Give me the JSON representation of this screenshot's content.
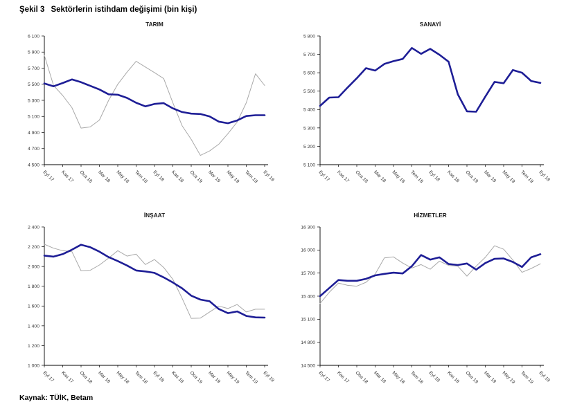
{
  "figure_title": {
    "label": "Şekil 3",
    "text": "Sektörlerin istihdam değişimi (bin kişi)"
  },
  "source": "Kaynak: TÜİK, Betam",
  "colors": {
    "navy": "#1e1e96",
    "gray": "#a9a9a9",
    "axis": "#000000",
    "tick_label": "#333333",
    "title": "#1a1a1a"
  },
  "x_tick_labels": [
    "Eyl 17",
    "Kas 17",
    "Oca 18",
    "Mar 18",
    "May 18",
    "Tem 18",
    "Eyl 18",
    "Kas 18",
    "Oca 19",
    "Mar 19",
    "May 19",
    "Tem 19",
    "Eyl 19"
  ],
  "chart_data": [
    {
      "type": "line",
      "title": "TARIM",
      "ylim": [
        4500,
        6100
      ],
      "ytick_step": 200,
      "grid": false,
      "legend": "none",
      "x_tick_labels": [
        "Eyl 17",
        "Kas 17",
        "Oca 18",
        "Mar 18",
        "May 18",
        "Tem 18",
        "Eyl 18",
        "Kas 18",
        "Oca 19",
        "Mar 19",
        "May 19",
        "Tem 19",
        "Eyl 19"
      ],
      "series": [
        {
          "name": "gray-line",
          "color_key": "gray",
          "width": 1,
          "values": [
            5860,
            5485,
            5360,
            5210,
            4955,
            4970,
            5055,
            5300,
            5500,
            5650,
            5785,
            5715,
            5645,
            5570,
            5270,
            4985,
            4815,
            4615,
            4670,
            4755,
            4885,
            5030,
            5270,
            5630,
            5485
          ]
        },
        {
          "name": "navy-line",
          "color_key": "navy",
          "width": 2.6,
          "values": [
            5510,
            5475,
            5515,
            5560,
            5525,
            5480,
            5435,
            5375,
            5370,
            5330,
            5270,
            5225,
            5255,
            5265,
            5200,
            5155,
            5135,
            5130,
            5100,
            5035,
            5015,
            5050,
            5105,
            5115,
            5115
          ]
        }
      ]
    },
    {
      "type": "line",
      "title": "SANAYİ",
      "ylim": [
        5100,
        5800
      ],
      "ytick_step": 100,
      "grid": false,
      "legend": "none",
      "x_tick_labels": [
        "Eyl 17",
        "Kas 17",
        "Oca 18",
        "Mar 18",
        "May 18",
        "Tem 18",
        "Eyl 18",
        "Kas 18",
        "Oca 19",
        "Mar 19",
        "May 19",
        "Tem 19",
        "Eyl 19"
      ],
      "series": [
        {
          "name": "navy-line",
          "color_key": "navy",
          "width": 2.6,
          "values": [
            5420,
            5465,
            5467,
            5520,
            5570,
            5625,
            5612,
            5648,
            5663,
            5675,
            5735,
            5703,
            5730,
            5698,
            5660,
            5483,
            5390,
            5388,
            5470,
            5550,
            5543,
            5615,
            5600,
            5555,
            5545
          ]
        }
      ]
    },
    {
      "type": "line",
      "title": "İNŞAAT",
      "ylim": [
        1000,
        2400
      ],
      "ytick_step": 200,
      "grid": false,
      "legend": "none",
      "x_tick_labels": [
        "Eyl 17",
        "Kas 17",
        "Oca 18",
        "Mar 18",
        "May 18",
        "Tem 18",
        "Eyl 18",
        "Kas 18",
        "Oca 19",
        "Mar 19",
        "May 19",
        "Tem 19",
        "Eyl 19"
      ],
      "series": [
        {
          "name": "gray-line",
          "color_key": "gray",
          "width": 1,
          "values": [
            2225,
            2185,
            2160,
            2150,
            1956,
            1962,
            2015,
            2085,
            2160,
            2105,
            2125,
            2020,
            2070,
            1990,
            1870,
            1680,
            1475,
            1478,
            1540,
            1600,
            1575,
            1615,
            1540,
            1568,
            1568
          ]
        },
        {
          "name": "navy-line",
          "color_key": "navy",
          "width": 2.6,
          "values": [
            2110,
            2100,
            2125,
            2170,
            2220,
            2195,
            2150,
            2095,
            2055,
            2010,
            1960,
            1950,
            1935,
            1890,
            1838,
            1780,
            1705,
            1665,
            1648,
            1570,
            1528,
            1545,
            1500,
            1485,
            1483
          ]
        }
      ]
    },
    {
      "type": "line",
      "title": "HİZMETLER",
      "ylim": [
        14500,
        16300
      ],
      "ytick_step": 300,
      "grid": false,
      "legend": "none",
      "x_tick_labels": [
        "Eyl 17",
        "Kas 17",
        "Oca 18",
        "Mar 18",
        "May 18",
        "Tem 18",
        "Eyl 18",
        "Kas 18",
        "Oca 19",
        "Mar 19",
        "May 19",
        "Tem 19",
        "Eyl 19"
      ],
      "series": [
        {
          "name": "gray-line",
          "color_key": "gray",
          "width": 1,
          "values": [
            15305,
            15450,
            15570,
            15540,
            15530,
            15580,
            15685,
            15898,
            15910,
            15830,
            15765,
            15810,
            15750,
            15855,
            15800,
            15790,
            15660,
            15790,
            15905,
            16055,
            16010,
            15870,
            15710,
            15760,
            15820
          ]
        },
        {
          "name": "navy-line",
          "color_key": "navy",
          "width": 2.6,
          "values": [
            15400,
            15505,
            15610,
            15600,
            15600,
            15625,
            15670,
            15690,
            15705,
            15695,
            15790,
            15935,
            15875,
            15905,
            15818,
            15805,
            15825,
            15745,
            15830,
            15885,
            15890,
            15845,
            15780,
            15905,
            15945
          ]
        }
      ]
    }
  ]
}
